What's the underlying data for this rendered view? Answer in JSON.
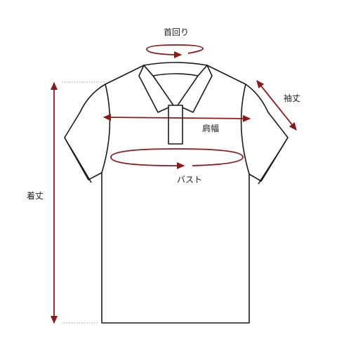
{
  "labels": {
    "neck": "首回り",
    "sleeve": "袖丈",
    "shoulder": "肩幅",
    "bust": "バスト",
    "length": "着丈"
  },
  "colors": {
    "outline": "#1a1a1a",
    "measure": "#8b1a1a",
    "guide": "#999999",
    "text": "#222222",
    "background": "#ffffff"
  }
}
